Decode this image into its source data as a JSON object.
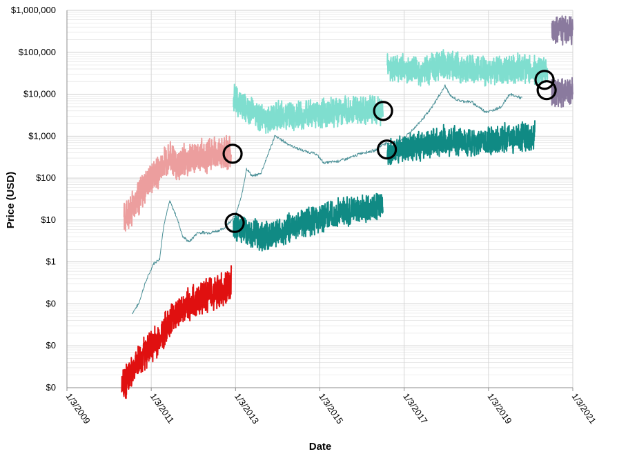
{
  "chart_data": {
    "type": "line",
    "title": "",
    "xlabel": "Date",
    "ylabel": "Price (USD)",
    "y_scale": "log",
    "y_decades": 9,
    "grid": true,
    "legend": "none",
    "x_ticks": [
      "1/3/2009",
      "1/3/2011",
      "1/3/2013",
      "1/3/2015",
      "1/3/2017",
      "1/3/2019",
      "1/3/2021"
    ],
    "y_ticks": [
      "$1,000,000",
      "$100,000",
      "$10,000",
      "$1,000",
      "$100",
      "$10",
      "$1",
      "$0",
      "$0",
      "$0"
    ],
    "x_range": [
      2009.0,
      2021.0
    ],
    "colors": {
      "main": "#4a8f96",
      "red": "#e01010",
      "pink": "#ec9e9e",
      "teal": "#108a84",
      "mint": "#7fdecf",
      "purple": "#8a7a9e",
      "marker": "#000000"
    },
    "series": [
      {
        "color": "main",
        "stroke": 1,
        "noise": 0.03,
        "x": [
          2010.55,
          2010.7,
          2010.85,
          2011.05,
          2011.2,
          2011.3,
          2011.44,
          2011.6,
          2011.75,
          2011.9,
          2012.1,
          2012.4,
          2012.7,
          2013.0,
          2013.15,
          2013.26,
          2013.4,
          2013.6,
          2013.85,
          2013.93,
          2014.1,
          2014.3,
          2014.6,
          2014.9,
          2015.1,
          2015.4,
          2015.7,
          2016.0,
          2016.3,
          2016.5,
          2016.8,
          2017.0,
          2017.3,
          2017.6,
          2017.9,
          2017.97,
          2018.1,
          2018.3,
          2018.6,
          2018.9,
          2019.0,
          2019.3,
          2019.5,
          2019.8
        ],
        "y": [
          0.06,
          0.1,
          0.3,
          0.9,
          1.2,
          8,
          28,
          12,
          4,
          3,
          5,
          5,
          6,
          13,
          40,
          170,
          110,
          130,
          600,
          1000,
          800,
          600,
          450,
          380,
          230,
          250,
          300,
          400,
          450,
          650,
          700,
          900,
          1800,
          4000,
          12000,
          16000,
          9000,
          7000,
          6500,
          4000,
          3800,
          5000,
          10000,
          8000
        ]
      },
      {
        "color": "red",
        "stroke": 2,
        "noise": 0.35,
        "x": [
          2010.3,
          2010.6,
          2010.9,
          2011.2,
          2011.5,
          2011.8,
          2012.2,
          2012.6,
          2012.9
        ],
        "y": [
          0.001,
          0.003,
          0.008,
          0.015,
          0.05,
          0.08,
          0.15,
          0.2,
          0.3
        ]
      },
      {
        "color": "pink",
        "stroke": 2,
        "noise": 0.35,
        "x": [
          2010.35,
          2010.6,
          2010.9,
          2011.2,
          2011.44,
          2011.6,
          2011.9,
          2012.3,
          2012.7,
          2012.9
        ],
        "y": [
          10,
          25,
          70,
          150,
          400,
          200,
          300,
          350,
          400,
          400
        ]
      },
      {
        "color": "teal",
        "stroke": 2,
        "noise": 0.3,
        "x": [
          2012.95,
          2013.3,
          2013.7,
          2014.0,
          2014.5,
          2015.0,
          2015.5,
          2016.0,
          2016.5
        ],
        "y": [
          7,
          5,
          4,
          5,
          8,
          11,
          15,
          18,
          25
        ]
      },
      {
        "color": "mint",
        "stroke": 2,
        "noise": 0.3,
        "x": [
          2012.95,
          2013.3,
          2013.7,
          2014.0,
          2014.5,
          2015.0,
          2015.5,
          2016.0,
          2016.5
        ],
        "y": [
          8000,
          4000,
          2500,
          3000,
          3000,
          3500,
          4000,
          4000,
          4000
        ]
      },
      {
        "color": "teal",
        "stroke": 2,
        "noise": 0.3,
        "x": [
          2016.6,
          2017.0,
          2017.5,
          2017.9,
          2018.2,
          2018.6,
          2019.0,
          2019.5,
          2020.0,
          2020.1
        ],
        "y": [
          400,
          500,
          600,
          800,
          800,
          700,
          800,
          900,
          1000,
          1100
        ]
      },
      {
        "color": "mint",
        "stroke": 2,
        "noise": 0.3,
        "x": [
          2016.6,
          2017.0,
          2017.5,
          2017.9,
          2018.2,
          2018.6,
          2019.0,
          2019.5,
          2020.0,
          2020.4
        ],
        "y": [
          40000,
          40000,
          35000,
          50000,
          45000,
          40000,
          35000,
          40000,
          40000,
          35000
        ]
      },
      {
        "color": "purple",
        "stroke": 2,
        "noise": 0.3,
        "x": [
          2020.5,
          2020.7,
          2021.0
        ],
        "y": [
          10000,
          11000,
          12000
        ]
      },
      {
        "color": "purple",
        "stroke": 2,
        "noise": 0.3,
        "x": [
          2020.5,
          2020.7,
          2021.0
        ],
        "y": [
          300000,
          350000,
          320000
        ]
      }
    ],
    "markers": [
      {
        "x": 2012.93,
        "y": 380
      },
      {
        "x": 2012.98,
        "y": 8.5
      },
      {
        "x": 2016.5,
        "y": 4000
      },
      {
        "x": 2016.59,
        "y": 480
      },
      {
        "x": 2020.33,
        "y": 22000
      },
      {
        "x": 2020.38,
        "y": 12500
      }
    ]
  }
}
